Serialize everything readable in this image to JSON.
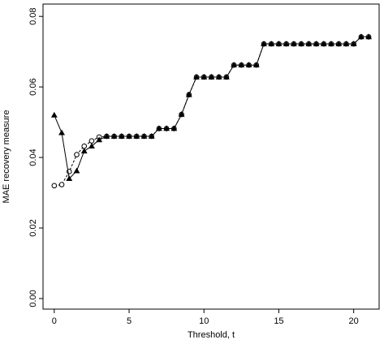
{
  "chart_data": {
    "type": "line",
    "title": "",
    "xlabel": "Threshold, t",
    "ylabel": "MAE recovery measure",
    "xlim": [
      -0.75,
      21.7
    ],
    "ylim": [
      -0.003,
      0.0835
    ],
    "x_ticks": [
      0,
      5,
      10,
      15,
      20
    ],
    "x_tick_labels": [
      "0",
      "5",
      "10",
      "15",
      "20"
    ],
    "y_ticks": [
      0.0,
      0.02,
      0.04,
      0.06,
      0.08
    ],
    "y_tick_labels": [
      "0.00",
      "0.02",
      "0.04",
      "0.06",
      "0.08"
    ],
    "grid": false,
    "legend": "none",
    "series": [
      {
        "marker": "open-circle",
        "line": "dashed",
        "x": [
          0,
          0.5,
          1,
          1.5,
          2,
          2.5,
          3,
          3.5,
          4,
          4.5,
          5,
          5.5,
          6,
          6.5,
          7,
          7.5,
          8,
          8.5,
          9,
          9.5,
          10,
          10.5,
          11,
          11.5,
          12,
          12.5,
          13,
          13.5,
          14,
          14.5,
          15,
          15.5,
          16,
          16.5,
          17,
          17.5,
          18,
          18.5,
          19,
          19.5,
          20,
          20.5,
          21
        ],
        "values": [
          0.032,
          0.0323,
          0.036,
          0.0408,
          0.0432,
          0.0447,
          0.0458,
          0.046,
          0.046,
          0.046,
          0.046,
          0.046,
          0.046,
          0.046,
          0.0482,
          0.0482,
          0.0482,
          0.0522,
          0.0578,
          0.0628,
          0.0628,
          0.0628,
          0.0628,
          0.0628,
          0.0662,
          0.0662,
          0.0662,
          0.0662,
          0.0722,
          0.0722,
          0.0722,
          0.0722,
          0.0722,
          0.0722,
          0.0722,
          0.0722,
          0.0722,
          0.0722,
          0.0722,
          0.0722,
          0.0722,
          0.0742,
          0.0742
        ]
      },
      {
        "marker": "filled-triangle",
        "line": "solid",
        "x": [
          0,
          0.5,
          1,
          1.5,
          2,
          2.5,
          3,
          3.5,
          4,
          4.5,
          5,
          5.5,
          6,
          6.5,
          7,
          7.5,
          8,
          8.5,
          9,
          9.5,
          10,
          10.5,
          11,
          11.5,
          12,
          12.5,
          13,
          13.5,
          14,
          14.5,
          15,
          15.5,
          16,
          16.5,
          17,
          17.5,
          18,
          18.5,
          19,
          19.5,
          20,
          20.5,
          21
        ],
        "values": [
          0.052,
          0.047,
          0.034,
          0.0362,
          0.0418,
          0.0432,
          0.045,
          0.046,
          0.046,
          0.046,
          0.046,
          0.046,
          0.046,
          0.046,
          0.0482,
          0.0482,
          0.0482,
          0.0522,
          0.0578,
          0.0628,
          0.0628,
          0.0628,
          0.0628,
          0.0628,
          0.0662,
          0.0662,
          0.0662,
          0.0662,
          0.0722,
          0.0722,
          0.0722,
          0.0722,
          0.0722,
          0.0722,
          0.0722,
          0.0722,
          0.0722,
          0.0722,
          0.0722,
          0.0722,
          0.0722,
          0.0742,
          0.0742
        ]
      }
    ]
  }
}
